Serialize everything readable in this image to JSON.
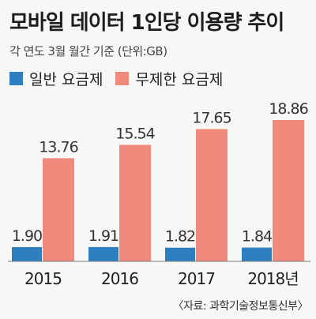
{
  "title": "모바일 데이터 1인당 이용량 추이",
  "subtitle": "각 연도 3월 월간 기준 (단위:GB)",
  "source": "〈자료: 과학기술정보통신부〉",
  "colors": {
    "general": "#2e7fbf",
    "unlimited": "#ef8a7c",
    "baseline": "#7a7a7a"
  },
  "chart_data": {
    "type": "bar",
    "categories": [
      "2015",
      "2016",
      "2017",
      "2018년"
    ],
    "series": [
      {
        "name": "일반 요금제",
        "values": [
          1.9,
          1.91,
          1.82,
          1.84
        ],
        "labels": [
          "1.90",
          "1.91",
          "1.82",
          "1.84"
        ]
      },
      {
        "name": "무제한 요금제",
        "values": [
          13.76,
          15.54,
          17.65,
          18.86
        ],
        "labels": [
          "13.76",
          "15.54",
          "17.65",
          "18.86"
        ]
      }
    ],
    "ylim": [
      0,
      20
    ],
    "legend": "top-left",
    "grid": false
  }
}
